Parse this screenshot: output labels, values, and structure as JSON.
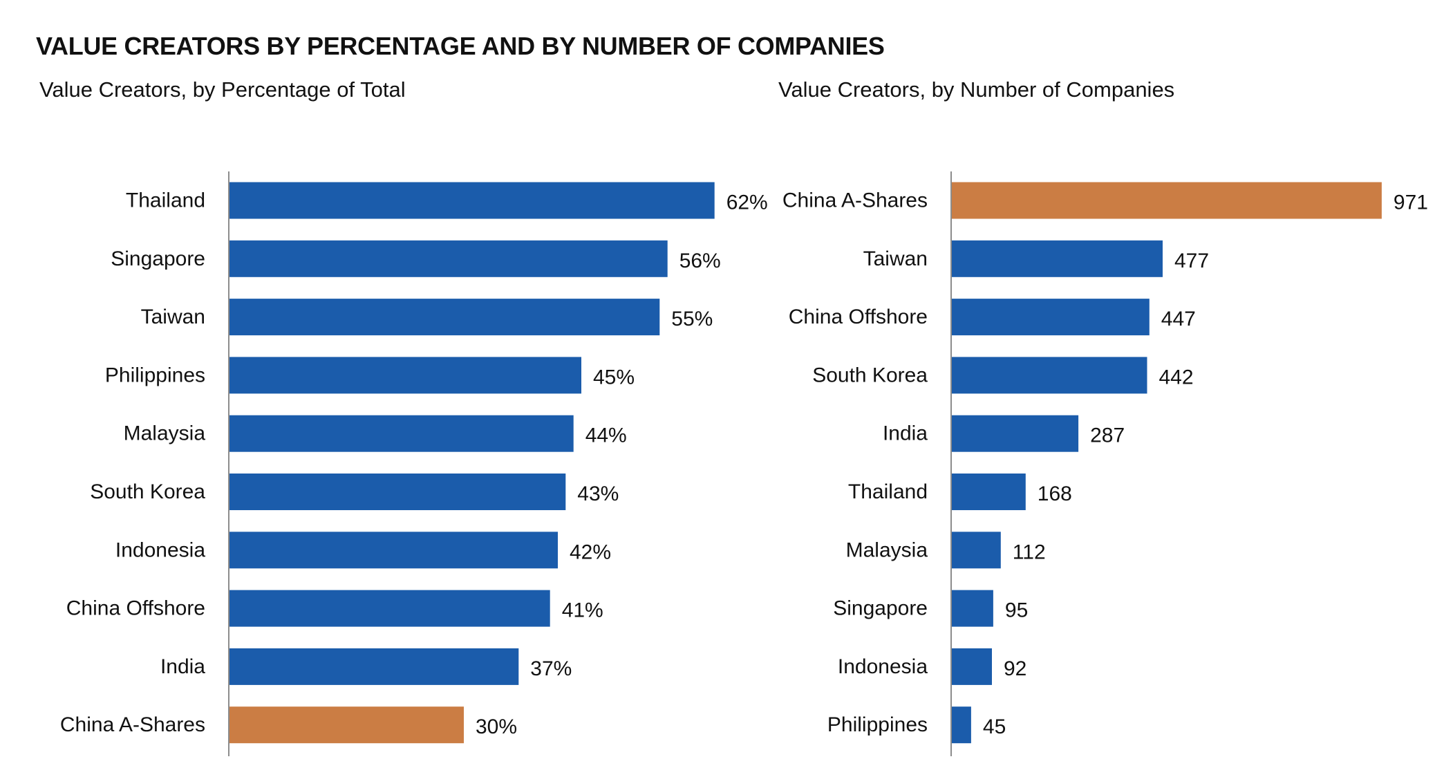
{
  "title": "VALUE CREATORS BY PERCENTAGE AND BY NUMBER OF COMPANIES",
  "colors": {
    "bar": "#1B5CAB",
    "highlight": "#CB7D44",
    "axis": "#8C8C8C"
  },
  "chart_data": [
    {
      "type": "bar",
      "orientation": "horizontal",
      "title": "Value Creators, by Percentage of Total",
      "categories": [
        "Thailand",
        "Singapore",
        "Taiwan",
        "Philippines",
        "Malaysia",
        "South Korea",
        "Indonesia",
        "China Offshore",
        "India",
        "China A-Shares"
      ],
      "values": [
        62,
        56,
        55,
        45,
        44,
        43,
        42,
        41,
        37,
        30
      ],
      "labels": [
        "62%",
        "56%",
        "55%",
        "45%",
        "44%",
        "43%",
        "42%",
        "41%",
        "37%",
        "30%"
      ],
      "highlight": "China A-Shares",
      "xlim": [
        0,
        90
      ],
      "grid": false,
      "legend": "none"
    },
    {
      "type": "bar",
      "orientation": "horizontal",
      "title": "Value Creators, by Number of Companies",
      "categories": [
        "China A-Shares",
        "Taiwan",
        "China Offshore",
        "South Korea",
        "India",
        "Thailand",
        "Malaysia",
        "Singapore",
        "Indonesia",
        "Philippines"
      ],
      "values": [
        971,
        477,
        447,
        442,
        287,
        168,
        112,
        95,
        92,
        45
      ],
      "labels": [
        "971",
        "477",
        "447",
        "442",
        "287",
        "168",
        "112",
        "95",
        "92",
        "45"
      ],
      "highlight": "China A-Shares",
      "xlim": [
        0,
        1060
      ],
      "grid": false,
      "legend": "none"
    }
  ]
}
